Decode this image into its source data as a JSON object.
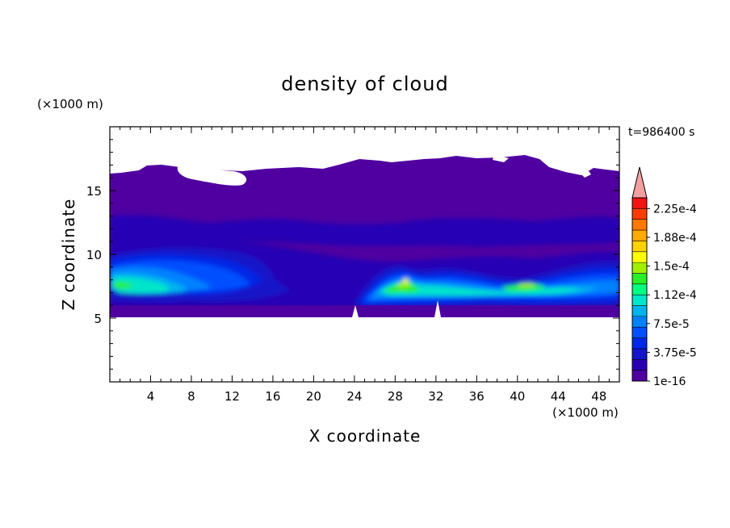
{
  "chart_data": {
    "type": "heatmap",
    "title": "density of cloud",
    "xlabel": "X coordinate",
    "ylabel": "Z coordinate",
    "x_unit": "(×1000 m)",
    "y_unit": "(×1000 m)",
    "time_label": "t=986400 s",
    "xlim": [
      0,
      50
    ],
    "ylim": [
      0,
      20
    ],
    "xticks": [
      "4",
      "8",
      "12",
      "16",
      "20",
      "24",
      "28",
      "32",
      "36",
      "40",
      "44",
      "48"
    ],
    "yticks": [
      "5",
      "10",
      "15"
    ],
    "colorbar": {
      "tick_labels": [
        "2.25e-4",
        "1.88e-4",
        "1.5e-4",
        "1.12e-4",
        "7.5e-5",
        "3.75e-5",
        "1e-16"
      ],
      "levels": [
        "#5000a0",
        "#2800b4",
        "#1414c8",
        "#0028e6",
        "#0050ff",
        "#0082ff",
        "#00b4f0",
        "#00e6c8",
        "#00ff82",
        "#28f028",
        "#a0f000",
        "#ffff00",
        "#ffd200",
        "#ffaa00",
        "#ff7800",
        "#ff3c00",
        "#f01414"
      ],
      "extend_color": "#f5a0a0"
    },
    "cloud_layer": {
      "x": [
        0,
        5,
        10,
        15,
        20,
        25,
        30,
        35,
        40,
        45,
        50
      ],
      "base_km": [
        5.3,
        5.3,
        5.3,
        5.3,
        5.3,
        5.3,
        5.3,
        5.3,
        5.3,
        5.3,
        5.3
      ],
      "top_km": [
        16.3,
        16.8,
        17.0,
        16.6,
        16.9,
        16.5,
        17.3,
        17.5,
        17.2,
        16.3,
        16.6
      ],
      "dense_band_km": [
        6.0,
        9.5
      ],
      "max_density_near_x": [
        2,
        28,
        40
      ]
    }
  }
}
